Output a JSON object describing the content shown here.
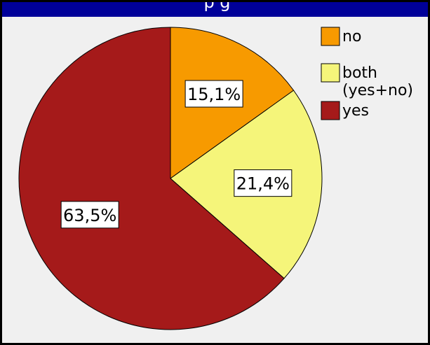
{
  "window": {
    "title_fragment": "p         g"
  },
  "chart_data": {
    "type": "pie",
    "title": "",
    "slices": [
      {
        "label": "no",
        "value": 15.1,
        "display": "15,1%",
        "color": "#f79a00"
      },
      {
        "label": "both\n(yes+no)",
        "value": 21.4,
        "display": "21,4%",
        "color": "#f5f57a"
      },
      {
        "label": "yes",
        "value": 63.5,
        "display": "63,5%",
        "color": "#a51a1a"
      }
    ],
    "start_angle": "12 o'clock",
    "direction": "clockwise",
    "legend_placement": "top-right",
    "legend": [
      "no",
      "both\n(yes+no)",
      "yes"
    ],
    "colors": {
      "background": "#f0f0f0",
      "title_bar": "#000099",
      "border": "#000000"
    }
  }
}
